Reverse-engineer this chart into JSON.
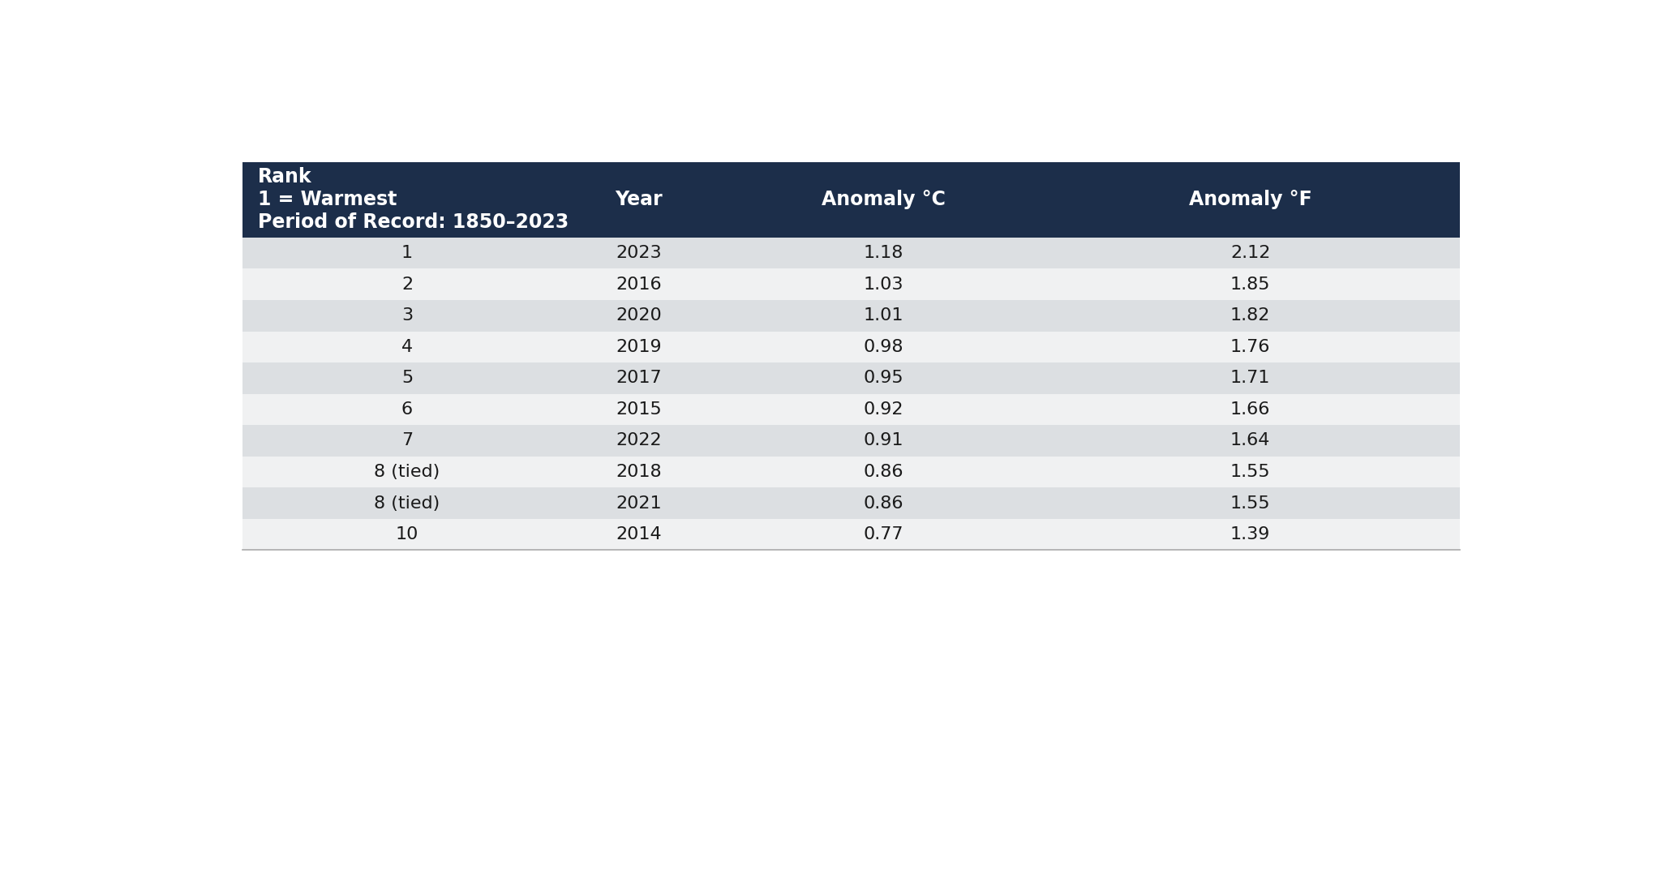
{
  "header_bg": "#1c2e4a",
  "header_text_color": "#ffffff",
  "row_colors": [
    "#dcdfe2",
    "#f0f1f2"
  ],
  "cell_text_color": "#1a1a1a",
  "header_line1": "Rank",
  "header_line2": "1 = Warmest",
  "header_line3": "Period of Record: 1850–2023",
  "col_headers": [
    "Year",
    "Anomaly °C",
    "Anomaly °F"
  ],
  "rows": [
    [
      "1",
      "2023",
      "1.18",
      "2.12"
    ],
    [
      "2",
      "2016",
      "1.03",
      "1.85"
    ],
    [
      "3",
      "2020",
      "1.01",
      "1.82"
    ],
    [
      "4",
      "2019",
      "0.98",
      "1.76"
    ],
    [
      "5",
      "2017",
      "0.95",
      "1.71"
    ],
    [
      "6",
      "2015",
      "0.92",
      "1.66"
    ],
    [
      "7",
      "2022",
      "0.91",
      "1.64"
    ],
    [
      "8 (tied)",
      "2018",
      "0.86",
      "1.55"
    ],
    [
      "8 (tied)",
      "2021",
      "0.86",
      "1.55"
    ],
    [
      "10",
      "2014",
      "0.77",
      "1.39"
    ]
  ],
  "figsize": [
    20.48,
    11.0
  ],
  "dpi": 100,
  "outer_bg": "#ffffff",
  "bottom_line_color": "#aaaaaa"
}
